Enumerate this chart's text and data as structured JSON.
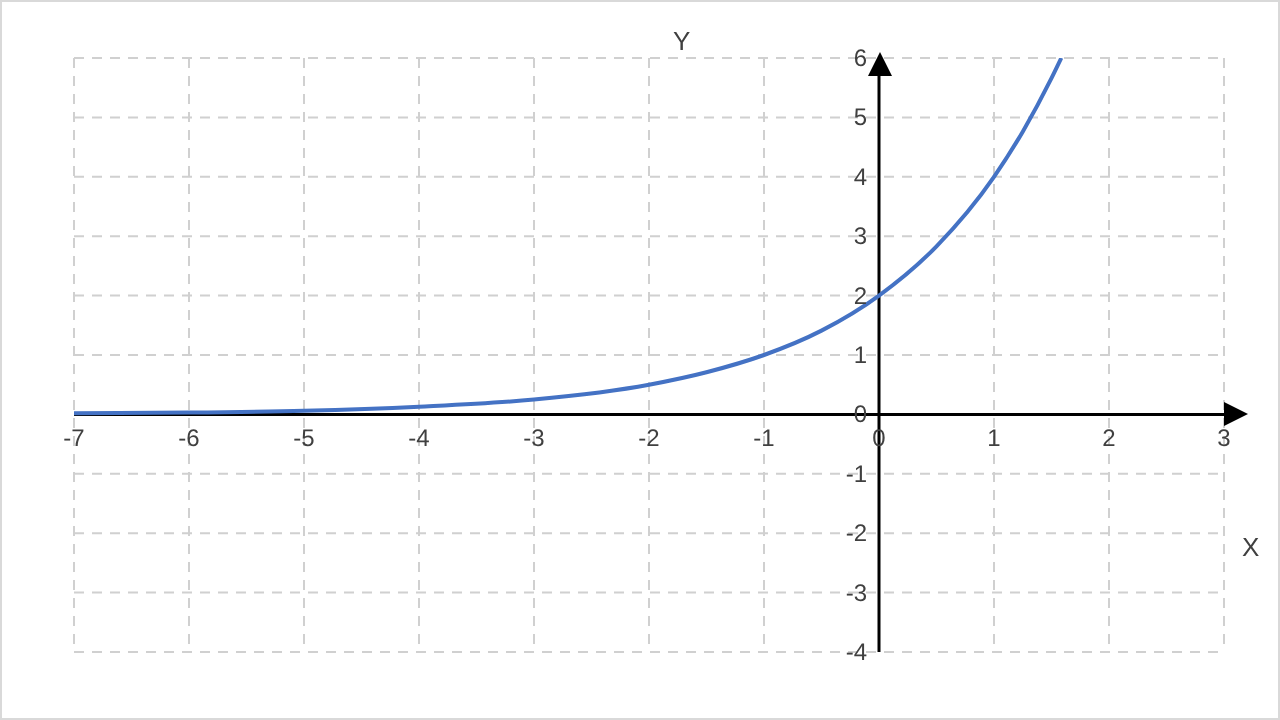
{
  "chart_data": {
    "type": "line",
    "xlabel": "X",
    "ylabel": "Y",
    "x": [
      -7,
      -6,
      -5,
      -4,
      -3,
      -2,
      -1.5,
      -1,
      -0.5,
      0,
      0.5,
      1,
      1.25,
      1.5,
      1.585
    ],
    "series": [
      {
        "color": "#4472c4",
        "values": [
          0.02,
          0.03,
          0.06,
          0.13,
          0.25,
          0.5,
          0.71,
          1,
          1.41,
          2,
          2.83,
          4,
          4.76,
          5.66,
          6
        ]
      }
    ],
    "xlim": [
      -7,
      3
    ],
    "ylim": [
      -4,
      6
    ],
    "xticks": [
      -7,
      -6,
      -5,
      -4,
      -3,
      -2,
      -1,
      0,
      1,
      2,
      3
    ],
    "yticks": [
      -4,
      -3,
      -2,
      -1,
      0,
      1,
      2,
      3,
      4,
      5,
      6
    ],
    "grid": true,
    "marker": "none",
    "line_style": "solid",
    "legend": false
  }
}
